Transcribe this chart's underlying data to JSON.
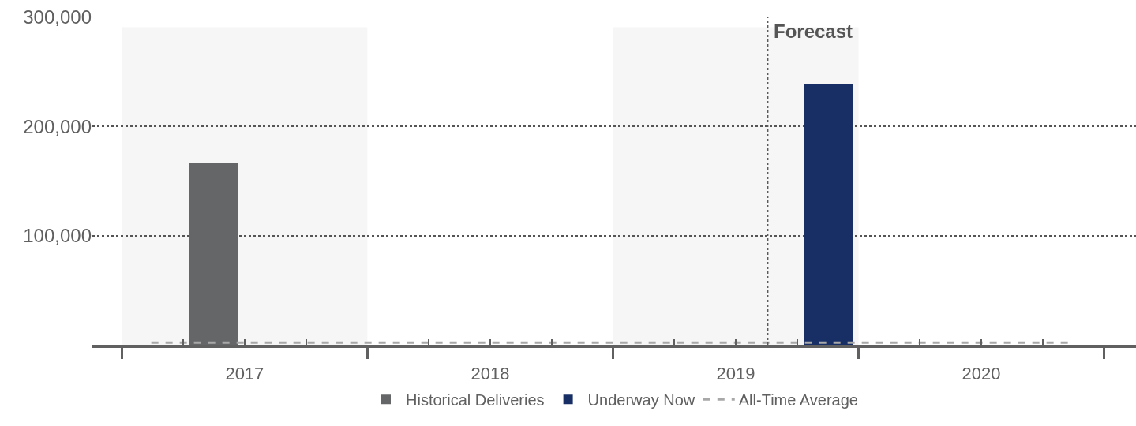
{
  "chart_data": {
    "type": "bar",
    "xlim": [
      2016.88,
      2021.13
    ],
    "xticks": [
      {
        "value": 2017,
        "label": null
      },
      {
        "value": 2017.25,
        "label": null
      },
      {
        "value": 2017.5,
        "label": "2017"
      },
      {
        "value": 2017.75,
        "label": null
      },
      {
        "value": 2018,
        "label": null
      },
      {
        "value": 2018.25,
        "label": null
      },
      {
        "value": 2018.5,
        "label": "2018"
      },
      {
        "value": 2018.75,
        "label": null
      },
      {
        "value": 2019,
        "label": null
      },
      {
        "value": 2019.25,
        "label": null
      },
      {
        "value": 2019.5,
        "label": "2019"
      },
      {
        "value": 2019.75,
        "label": null
      },
      {
        "value": 2020,
        "label": null
      },
      {
        "value": 2020.25,
        "label": null
      },
      {
        "value": 2020.5,
        "label": "2020"
      },
      {
        "value": 2020.75,
        "label": null
      },
      {
        "value": 2021,
        "label": null
      }
    ],
    "ylim": [
      0,
      300000
    ],
    "yticks": [
      {
        "value": 100000,
        "label": "100,000"
      },
      {
        "value": 200000,
        "label": "200,000"
      },
      {
        "value": 300000,
        "label": "300,000"
      }
    ],
    "grid": "y",
    "legend": "bottom",
    "series": [
      {
        "name": "Historical Deliveries",
        "color": "#646668",
        "x": [
          2017.375
        ],
        "values": [
          166000
        ]
      },
      {
        "name": "Underway Now",
        "color": "#182f66",
        "x": [
          2019.875
        ],
        "values": [
          239000
        ]
      },
      {
        "name": "All-Time Average",
        "type": "line",
        "line_style": "dashed",
        "color": "#a8a8a8",
        "x": [
          2017.12,
          2020.88
        ],
        "values": [
          2000,
          2000
        ]
      }
    ],
    "bands": [
      {
        "axis": "x",
        "from": 2017,
        "to": 2018,
        "color": "#f6f6f6"
      },
      {
        "axis": "x",
        "from": 2019,
        "to": 2020,
        "color": "#f6f6f6"
      }
    ],
    "ref_lines": [
      {
        "axis": "x",
        "value": 2019.63,
        "label": "Forecast",
        "line_style": "dotted",
        "color": "#5a5a5a"
      }
    ]
  }
}
